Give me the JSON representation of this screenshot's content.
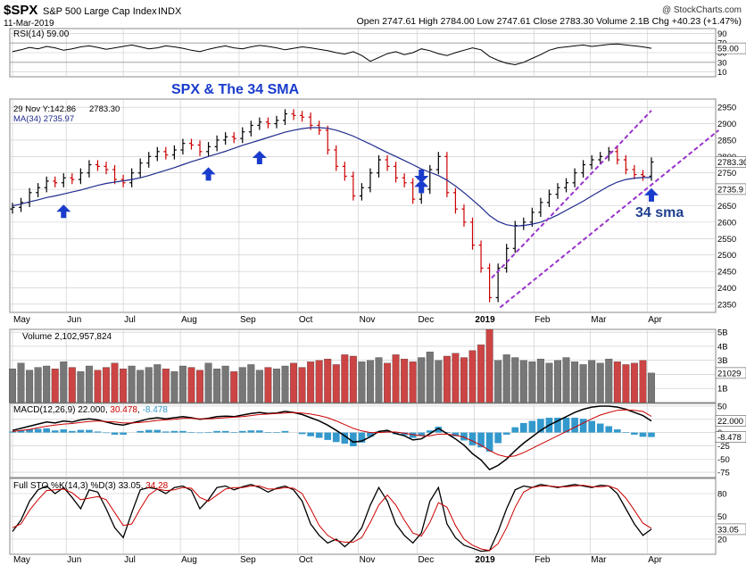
{
  "header": {
    "symbol": "$SPX",
    "name": "S&P 500 Large Cap Index",
    "exchange": "INDX",
    "date": "11-Mar-2019",
    "copyright": "@ StockCharts.com",
    "quote": "Open 2747.61  High 2784.00  Low 2747.61  Close 2783.30  Volume 2.1B  Chg +40.23 (+1.47%)"
  },
  "annotations": {
    "title": "SPX & The 34 SMA",
    "sma_label": "34 sma"
  },
  "colors": {
    "up": "#000000",
    "down": "#cc0000",
    "ma": "#1f2a8c",
    "arrow": "#1a3ccc",
    "channel": "#9933cc",
    "rsi_line": "#000000",
    "macd_line": "#000000",
    "signal_line": "#cc0000",
    "histogram": "#3399cc",
    "grid": "#c8c8c8",
    "label_box": "#1f2a8c"
  },
  "chart_data": [
    {
      "id": "rsi",
      "type": "line",
      "label": "RSI(14) 59.00",
      "ylim": [
        0,
        100
      ],
      "yticks": [
        10,
        30,
        50,
        70,
        90
      ],
      "bands": [
        30,
        70
      ],
      "last_value": "59.00",
      "values": [
        52,
        56,
        61,
        58,
        63,
        60,
        55,
        58,
        62,
        64,
        61,
        57,
        60,
        63,
        66,
        62,
        58,
        60,
        64,
        62,
        59,
        55,
        52,
        57,
        61,
        64,
        60,
        58,
        62,
        65,
        63,
        60,
        56,
        59,
        62,
        60,
        57,
        54,
        50,
        47,
        52,
        44,
        32,
        40,
        48,
        52,
        46,
        50,
        58,
        54,
        48,
        44,
        50,
        55,
        60,
        56,
        42,
        34,
        28,
        25,
        30,
        38,
        46,
        55,
        60,
        62,
        64,
        66,
        63,
        65,
        67,
        68,
        66,
        64,
        62,
        59
      ]
    },
    {
      "id": "price",
      "type": "ohlc",
      "label_ma": "MA(34) 2735.97",
      "label_price": "2783.30",
      "label_y": "29 Nov Y:142.86",
      "ylim": [
        2325,
        2975
      ],
      "yticks": [
        2350,
        2400,
        2450,
        2500,
        2550,
        2600,
        2650,
        2700,
        2750,
        2800,
        2850,
        2900,
        2950
      ],
      "x_labels": [
        "May",
        "Jun",
        "Jul",
        "Aug",
        "Sep",
        "Oct",
        "Nov",
        "Dec",
        "2019",
        "Feb",
        "Mar",
        "Apr"
      ],
      "close": [
        2645,
        2660,
        2690,
        2705,
        2725,
        2720,
        2735,
        2730,
        2750,
        2775,
        2770,
        2760,
        2730,
        2720,
        2750,
        2780,
        2800,
        2815,
        2805,
        2820,
        2840,
        2835,
        2815,
        2830,
        2850,
        2860,
        2855,
        2875,
        2895,
        2905,
        2900,
        2910,
        2930,
        2925,
        2920,
        2895,
        2880,
        2820,
        2770,
        2740,
        2680,
        2705,
        2750,
        2790,
        2770,
        2735,
        2720,
        2670,
        2700,
        2760,
        2800,
        2690,
        2640,
        2600,
        2530,
        2460,
        2370,
        2460,
        2520,
        2590,
        2600,
        2630,
        2660,
        2685,
        2705,
        2720,
        2750,
        2775,
        2790,
        2800,
        2815,
        2790,
        2760,
        2745,
        2740,
        2783.3
      ],
      "ma_values": [
        2650,
        2655,
        2662,
        2668,
        2675,
        2680,
        2686,
        2692,
        2698,
        2705,
        2712,
        2718,
        2722,
        2726,
        2730,
        2735,
        2742,
        2750,
        2758,
        2766,
        2775,
        2784,
        2792,
        2800,
        2808,
        2816,
        2825,
        2834,
        2842,
        2850,
        2858,
        2866,
        2874,
        2880,
        2885,
        2888,
        2888,
        2886,
        2880,
        2872,
        2862,
        2850,
        2838,
        2825,
        2812,
        2800,
        2788,
        2775,
        2762,
        2752,
        2742,
        2728,
        2710,
        2690,
        2668,
        2645,
        2620,
        2602,
        2592,
        2588,
        2590,
        2594,
        2600,
        2610,
        2622,
        2636,
        2650,
        2664,
        2680,
        2695,
        2710,
        2722,
        2730,
        2734,
        2736,
        2735.97
      ],
      "arrows": [
        6,
        23,
        29,
        48,
        75
      ],
      "channel_upper": [
        [
          57,
          2430
        ],
        [
          76,
          2940
        ]
      ],
      "channel_lower": [
        [
          58,
          2340
        ],
        [
          84,
          2880
        ]
      ],
      "channel_xmax": 76
    },
    {
      "id": "volume",
      "type": "bar",
      "label": "Volume 2,102,957,824",
      "ylim": [
        0,
        5200000000
      ],
      "yticks": [
        "1B",
        "2B",
        "3B",
        "4B",
        "5B"
      ],
      "ytick_values": [
        1000000000,
        2000000000,
        3000000000,
        4000000000,
        5000000000
      ],
      "last_value": "21029",
      "values": [
        2.4,
        2.8,
        2.3,
        2.5,
        2.6,
        2.4,
        2.9,
        2.5,
        2.2,
        2.6,
        2.3,
        2.5,
        2.8,
        2.4,
        2.6,
        2.3,
        2.5,
        2.7,
        2.4,
        2.2,
        2.6,
        2.5,
        2.3,
        2.8,
        2.4,
        2.6,
        2.2,
        2.5,
        2.7,
        2.3,
        2.5,
        2.4,
        2.6,
        2.8,
        2.5,
        2.9,
        3.0,
        3.1,
        2.7,
        3.4,
        3.3,
        2.9,
        3.0,
        3.2,
        2.8,
        3.4,
        3.1,
        2.9,
        3.2,
        3.6,
        3.0,
        3.3,
        3.5,
        3.2,
        3.7,
        4.1,
        5.2,
        3.0,
        3.4,
        3.2,
        3.0,
        2.9,
        3.1,
        2.8,
        3.0,
        3.2,
        2.9,
        2.7,
        3.0,
        2.8,
        3.1,
        2.9,
        2.7,
        2.8,
        3.0,
        2.1
      ]
    },
    {
      "id": "macd",
      "type": "line",
      "label": "MACD(12,26,9)",
      "label_macd": "22.000",
      "label_signal": "30.478",
      "label_hist": "-8.478",
      "ylim": [
        -85,
        55
      ],
      "yticks": [
        50,
        25,
        0,
        -25,
        -50,
        -75
      ],
      "tick_labels": [
        "50",
        "25",
        "0",
        "-25",
        "-50",
        "-75"
      ],
      "last_macd": "22.000",
      "last_hist": "-8.478",
      "macd": [
        4,
        8,
        12,
        16,
        20,
        18,
        22,
        20,
        24,
        26,
        24,
        20,
        16,
        14,
        18,
        22,
        26,
        28,
        26,
        28,
        30,
        28,
        25,
        27,
        30,
        31,
        30,
        33,
        36,
        38,
        36,
        37,
        40,
        38,
        34,
        28,
        22,
        14,
        4,
        -6,
        -18,
        -16,
        -8,
        2,
        4,
        -2,
        -6,
        -14,
        -12,
        -2,
        8,
        -2,
        -12,
        -24,
        -40,
        -52,
        -70,
        -62,
        -50,
        -34,
        -20,
        -8,
        4,
        14,
        22,
        30,
        38,
        44,
        48,
        50,
        50,
        48,
        44,
        38,
        32,
        22
      ],
      "signal": [
        2,
        4,
        6,
        9,
        12,
        14,
        16,
        17,
        19,
        21,
        22,
        21,
        20,
        18,
        18,
        19,
        21,
        23,
        24,
        25,
        27,
        27,
        26,
        26,
        27,
        28,
        29,
        30,
        32,
        34,
        35,
        36,
        37,
        38,
        37,
        35,
        32,
        28,
        22,
        15,
        8,
        3,
        0,
        0,
        1,
        1,
        -1,
        -4,
        -6,
        -6,
        -3,
        -3,
        -5,
        -9,
        -16,
        -24,
        -34,
        -42,
        -46,
        -44,
        -38,
        -30,
        -22,
        -14,
        -6,
        2,
        10,
        18,
        26,
        33,
        38,
        42,
        43,
        42,
        40,
        30.478
      ]
    },
    {
      "id": "sto",
      "type": "line",
      "label": "Full STO %K(14,3) %D(3)",
      "label_k": "33.05",
      "label_d": "34.28",
      "ylim": [
        0,
        100
      ],
      "yticks": [
        20,
        50,
        80
      ],
      "last_value": "33.05",
      "k": [
        30,
        45,
        70,
        85,
        90,
        80,
        88,
        75,
        60,
        85,
        82,
        60,
        35,
        22,
        55,
        85,
        88,
        86,
        80,
        88,
        90,
        84,
        60,
        72,
        88,
        90,
        85,
        89,
        92,
        88,
        82,
        87,
        90,
        85,
        70,
        40,
        25,
        15,
        20,
        10,
        20,
        35,
        65,
        88,
        70,
        40,
        25,
        15,
        28,
        70,
        88,
        40,
        22,
        12,
        8,
        4,
        5,
        30,
        60,
        85,
        90,
        88,
        92,
        90,
        88,
        90,
        92,
        90,
        88,
        91,
        90,
        80,
        60,
        40,
        25,
        33.05
      ],
      "d": [
        35,
        40,
        58,
        72,
        84,
        85,
        86,
        81,
        72,
        74,
        76,
        72,
        55,
        38,
        40,
        60,
        78,
        86,
        84,
        85,
        88,
        87,
        75,
        70,
        78,
        86,
        88,
        88,
        90,
        90,
        86,
        86,
        88,
        87,
        80,
        60,
        38,
        25,
        18,
        16,
        16,
        22,
        42,
        65,
        78,
        65,
        45,
        28,
        24,
        42,
        68,
        62,
        38,
        20,
        12,
        7,
        5,
        14,
        35,
        62,
        82,
        88,
        90,
        90,
        89,
        89,
        90,
        91,
        89,
        89,
        90,
        86,
        74,
        58,
        41,
        34.28
      ]
    }
  ]
}
